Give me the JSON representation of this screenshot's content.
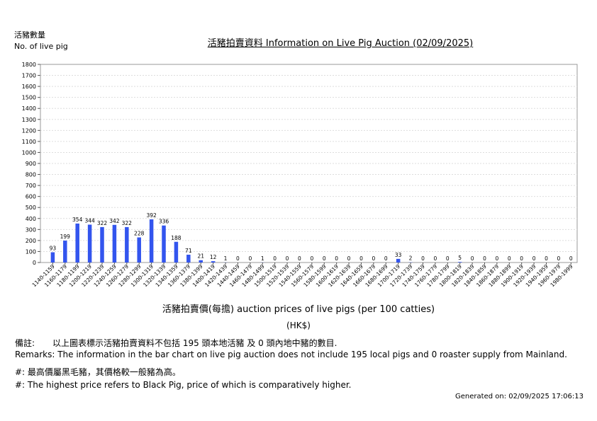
{
  "header": {
    "y_title_zh": "活豬數量",
    "y_title_en": "No. of live pig",
    "title": "活豬拍賣資料 Information on Live Pig Auction (02/09/2025)"
  },
  "chart_data": {
    "type": "bar",
    "title": "活豬拍賣資料 Information on Live Pig Auction (02/09/2025)",
    "ylabel": "活豬數量 No. of live pig",
    "xlabel": "活豬拍賣價(每擔) auction prices of live pigs (per 100 catties)",
    "x_unit": "(HK$)",
    "ylim": [
      0,
      1800
    ],
    "yticks": [
      0,
      100,
      200,
      300,
      400,
      500,
      600,
      700,
      800,
      900,
      1000,
      1100,
      1200,
      1300,
      1400,
      1500,
      1600,
      1700,
      1800
    ],
    "grid": true,
    "bar_color": "#3355ee",
    "categories": [
      "1140-1159",
      "1160-1179",
      "1180-1199",
      "1200-1219",
      "1220-1239",
      "1240-1259",
      "1260-1279",
      "1280-1299",
      "1300-1319",
      "1320-1339",
      "1340-1359",
      "1360-1379",
      "1380-1399",
      "1400-1419",
      "1420-1439",
      "1440-1459",
      "1460-1479",
      "1480-1499",
      "1500-1519",
      "1520-1539",
      "1540-1559",
      "1560-1579",
      "1580-1599",
      "1600-1619",
      "1620-1639",
      "1640-1659",
      "1660-1679",
      "1680-1699",
      "1700-1719",
      "1720-1739",
      "1740-1759",
      "1760-1779",
      "1780-1799",
      "1800-1819",
      "1820-1839",
      "1840-1859",
      "1860-1879",
      "1880-1899",
      "1900-1919",
      "1920-1939",
      "1940-1959",
      "1960-1979",
      "1980-1999"
    ],
    "values": [
      93,
      199,
      354,
      344,
      322,
      342,
      322,
      228,
      392,
      336,
      188,
      71,
      21,
      12,
      1,
      0,
      0,
      1,
      0,
      0,
      0,
      0,
      0,
      0,
      0,
      0,
      0,
      0,
      33,
      2,
      0,
      0,
      0,
      5,
      0,
      0,
      0,
      0,
      0,
      0,
      0,
      0,
      0
    ]
  },
  "notes": {
    "remark_label_zh": "備註:",
    "remark_zh": "以上圖表標示活豬拍賣資料不包括 195 頭本地活豬 及 0 頭內地中豬的數目.",
    "remark_en": "Remarks: The information in the bar chart on live pig auction does not include 195 local pigs and 0 roaster supply from Mainland.",
    "hash_zh": "#: 最高價屬黑毛豬，其價格較一般豬為高。",
    "hash_en": "#: The highest price refers to Black Pig, price of which is comparatively higher."
  },
  "footer": {
    "generated": "Generated on: 02/09/2025 17:06:13"
  }
}
